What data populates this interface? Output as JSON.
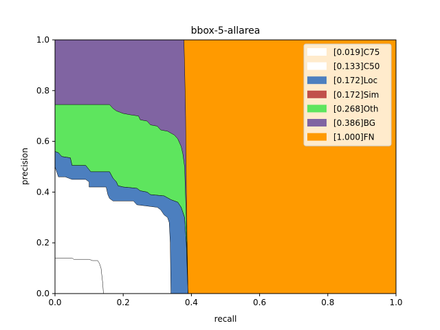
{
  "chart_data": {
    "type": "area",
    "title": "bbox-5-allarea",
    "xlabel": "recall",
    "ylabel": "precision",
    "xlim": [
      0,
      1
    ],
    "ylim": [
      0,
      1
    ],
    "x_ticks": [
      "0.0",
      "0.2",
      "0.4",
      "0.6",
      "0.8",
      "1.0"
    ],
    "y_ticks": [
      "0.0",
      "0.2",
      "0.4",
      "0.6",
      "0.8",
      "1.0"
    ],
    "grid": false,
    "legend_position": "top-right",
    "legend": [
      {
        "label": "[0.019]C75",
        "color": "#ffffff"
      },
      {
        "label": "[0.133]C50",
        "color": "#ffffff"
      },
      {
        "label": "[0.172]Loc",
        "color": "#4c7fbf"
      },
      {
        "label": "[0.172]Sim",
        "color": "#c1504a"
      },
      {
        "label": "[0.268]Oth",
        "color": "#5ee55e"
      },
      {
        "label": "[0.386]BG",
        "color": "#8064a2"
      },
      {
        "label": "[1.000]FN",
        "color": "#ff9a00"
      }
    ],
    "series": [
      {
        "name": "[1.000]FN",
        "color": "#ff9a00",
        "points": [
          [
            0,
            1
          ],
          [
            1,
            1
          ]
        ]
      },
      {
        "name": "[0.386]BG",
        "color": "#8064a2",
        "points": [
          [
            0,
            1
          ],
          [
            0.378,
            1
          ],
          [
            0.38,
            0.9
          ],
          [
            0.383,
            0.7
          ],
          [
            0.386,
            0.3
          ],
          [
            0.39,
            0.0
          ]
        ]
      },
      {
        "name": "[0.268]Oth",
        "color": "#5ee55e",
        "points": [
          [
            0,
            0.745
          ],
          [
            0.16,
            0.745
          ],
          [
            0.17,
            0.73
          ],
          [
            0.18,
            0.72
          ],
          [
            0.19,
            0.715
          ],
          [
            0.2,
            0.71
          ],
          [
            0.22,
            0.705
          ],
          [
            0.245,
            0.7
          ],
          [
            0.25,
            0.685
          ],
          [
            0.27,
            0.68
          ],
          [
            0.28,
            0.665
          ],
          [
            0.3,
            0.66
          ],
          [
            0.31,
            0.645
          ],
          [
            0.33,
            0.64
          ],
          [
            0.35,
            0.625
          ],
          [
            0.36,
            0.61
          ],
          [
            0.37,
            0.58
          ],
          [
            0.375,
            0.55
          ],
          [
            0.38,
            0.5
          ],
          [
            0.385,
            0.3
          ],
          [
            0.39,
            0.0
          ]
        ]
      },
      {
        "name": "[0.172]Sim",
        "color": "#c1504a",
        "points": [
          [
            0,
            0.56
          ],
          [
            0.01,
            0.555
          ],
          [
            0.02,
            0.54
          ],
          [
            0.045,
            0.535
          ],
          [
            0.05,
            0.505
          ],
          [
            0.09,
            0.505
          ],
          [
            0.105,
            0.48
          ],
          [
            0.16,
            0.48
          ],
          [
            0.17,
            0.455
          ],
          [
            0.18,
            0.44
          ],
          [
            0.185,
            0.425
          ],
          [
            0.2,
            0.42
          ],
          [
            0.24,
            0.415
          ],
          [
            0.25,
            0.405
          ],
          [
            0.27,
            0.4
          ],
          [
            0.28,
            0.39
          ],
          [
            0.32,
            0.385
          ],
          [
            0.34,
            0.37
          ],
          [
            0.36,
            0.36
          ],
          [
            0.37,
            0.34
          ],
          [
            0.38,
            0.3
          ],
          [
            0.385,
            0.2
          ],
          [
            0.39,
            0.0
          ]
        ]
      },
      {
        "name": "[0.172]Loc",
        "color": "#4c7fbf",
        "points": [
          [
            0,
            0.56
          ],
          [
            0.01,
            0.555
          ],
          [
            0.02,
            0.54
          ],
          [
            0.045,
            0.535
          ],
          [
            0.05,
            0.505
          ],
          [
            0.09,
            0.505
          ],
          [
            0.105,
            0.48
          ],
          [
            0.16,
            0.48
          ],
          [
            0.17,
            0.455
          ],
          [
            0.18,
            0.44
          ],
          [
            0.185,
            0.425
          ],
          [
            0.2,
            0.42
          ],
          [
            0.24,
            0.415
          ],
          [
            0.25,
            0.405
          ],
          [
            0.27,
            0.4
          ],
          [
            0.28,
            0.39
          ],
          [
            0.32,
            0.385
          ],
          [
            0.34,
            0.37
          ],
          [
            0.36,
            0.36
          ],
          [
            0.37,
            0.34
          ],
          [
            0.38,
            0.3
          ],
          [
            0.385,
            0.2
          ],
          [
            0.39,
            0.0
          ]
        ]
      },
      {
        "name": "[0.133]C50",
        "color": "#ffffff",
        "points": [
          [
            0,
            0.5
          ],
          [
            0.01,
            0.46
          ],
          [
            0.03,
            0.46
          ],
          [
            0.04,
            0.455
          ],
          [
            0.05,
            0.45
          ],
          [
            0.09,
            0.45
          ],
          [
            0.1,
            0.44
          ],
          [
            0.1,
            0.42
          ],
          [
            0.15,
            0.42
          ],
          [
            0.155,
            0.39
          ],
          [
            0.16,
            0.375
          ],
          [
            0.17,
            0.365
          ],
          [
            0.23,
            0.365
          ],
          [
            0.24,
            0.35
          ],
          [
            0.3,
            0.34
          ],
          [
            0.31,
            0.33
          ],
          [
            0.32,
            0.31
          ],
          [
            0.33,
            0.3
          ],
          [
            0.335,
            0.28
          ],
          [
            0.338,
            0.2
          ],
          [
            0.34,
            0.0
          ]
        ]
      },
      {
        "name": "[0.019]C75",
        "color": "#ffffff",
        "points": [
          [
            0,
            0.14
          ],
          [
            0.05,
            0.14
          ],
          [
            0.055,
            0.135
          ],
          [
            0.1,
            0.135
          ],
          [
            0.11,
            0.13
          ],
          [
            0.125,
            0.13
          ],
          [
            0.13,
            0.12
          ],
          [
            0.135,
            0.1
          ],
          [
            0.14,
            0.04
          ],
          [
            0.142,
            0.0
          ]
        ]
      }
    ]
  }
}
